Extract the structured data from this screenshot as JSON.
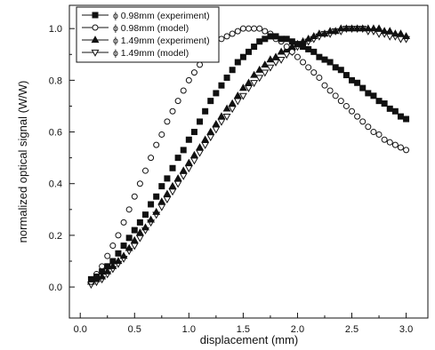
{
  "chart_data": {
    "type": "scatter",
    "xlabel": "displacement (mm)",
    "ylabel": "normalized optical signal (W/W)",
    "xlim": [
      -0.1,
      3.2
    ],
    "ylim": [
      -0.12,
      1.09
    ],
    "xticks": [
      "0.0",
      "0.5",
      "1.0",
      "1.5",
      "2.0",
      "2.5",
      "3.0"
    ],
    "yticks": [
      "0.0",
      "0.2",
      "0.4",
      "0.6",
      "0.8",
      "1.0"
    ],
    "grid": false,
    "legend_position": "top-left",
    "x": [
      0.1,
      0.15,
      0.2,
      0.25,
      0.3,
      0.35,
      0.4,
      0.45,
      0.5,
      0.55,
      0.6,
      0.65,
      0.7,
      0.75,
      0.8,
      0.85,
      0.9,
      0.95,
      1.0,
      1.05,
      1.1,
      1.15,
      1.2,
      1.25,
      1.3,
      1.35,
      1.4,
      1.45,
      1.5,
      1.55,
      1.6,
      1.65,
      1.7,
      1.75,
      1.8,
      1.85,
      1.9,
      1.95,
      2.0,
      2.05,
      2.1,
      2.15,
      2.2,
      2.25,
      2.3,
      2.35,
      2.4,
      2.45,
      2.5,
      2.55,
      2.6,
      2.65,
      2.7,
      2.75,
      2.8,
      2.85,
      2.9,
      2.95,
      3.0
    ],
    "series": [
      {
        "name": "ϕ 0.98mm (experiment)",
        "marker": "filled-square",
        "values": [
          0.03,
          0.04,
          0.06,
          0.08,
          0.1,
          0.13,
          0.16,
          0.19,
          0.22,
          0.25,
          0.28,
          0.32,
          0.35,
          0.39,
          0.42,
          0.46,
          0.5,
          0.53,
          0.57,
          0.6,
          0.64,
          0.68,
          0.72,
          0.75,
          0.78,
          0.81,
          0.84,
          0.87,
          0.89,
          0.91,
          0.93,
          0.95,
          0.96,
          0.97,
          0.97,
          0.96,
          0.96,
          0.95,
          0.94,
          0.93,
          0.92,
          0.91,
          0.89,
          0.88,
          0.87,
          0.85,
          0.84,
          0.82,
          0.8,
          0.79,
          0.77,
          0.75,
          0.74,
          0.72,
          0.71,
          0.69,
          0.68,
          0.66,
          0.65
        ]
      },
      {
        "name": "ϕ 0.98mm (model)",
        "marker": "open-circle",
        "values": [
          0.02,
          0.05,
          0.08,
          0.12,
          0.16,
          0.2,
          0.25,
          0.3,
          0.35,
          0.4,
          0.45,
          0.5,
          0.55,
          0.59,
          0.64,
          0.68,
          0.72,
          0.76,
          0.8,
          0.83,
          0.86,
          0.89,
          0.92,
          0.94,
          0.96,
          0.97,
          0.98,
          0.99,
          1.0,
          1.0,
          1.0,
          1.0,
          0.99,
          0.98,
          0.96,
          0.95,
          0.93,
          0.91,
          0.89,
          0.87,
          0.85,
          0.83,
          0.81,
          0.78,
          0.76,
          0.74,
          0.72,
          0.7,
          0.68,
          0.66,
          0.64,
          0.62,
          0.6,
          0.59,
          0.57,
          0.56,
          0.55,
          0.54,
          0.53
        ]
      },
      {
        "name": "ϕ 1.49mm (experiment)",
        "marker": "filled-triangle-up",
        "values": [
          0.02,
          0.03,
          0.04,
          0.06,
          0.08,
          0.1,
          0.12,
          0.15,
          0.18,
          0.21,
          0.23,
          0.26,
          0.29,
          0.33,
          0.36,
          0.39,
          0.42,
          0.45,
          0.48,
          0.51,
          0.54,
          0.57,
          0.6,
          0.63,
          0.66,
          0.69,
          0.71,
          0.74,
          0.77,
          0.79,
          0.82,
          0.84,
          0.86,
          0.88,
          0.89,
          0.91,
          0.92,
          0.93,
          0.94,
          0.95,
          0.96,
          0.97,
          0.98,
          0.98,
          0.99,
          0.99,
          1.0,
          1.0,
          1.0,
          1.0,
          1.0,
          1.0,
          1.0,
          1.0,
          0.99,
          0.99,
          0.98,
          0.98,
          0.97
        ]
      },
      {
        "name": "ϕ 1.49mm (model)",
        "marker": "open-triangle-down",
        "values": [
          0.01,
          0.02,
          0.03,
          0.05,
          0.07,
          0.09,
          0.11,
          0.14,
          0.16,
          0.19,
          0.22,
          0.25,
          0.28,
          0.31,
          0.34,
          0.37,
          0.4,
          0.43,
          0.46,
          0.49,
          0.52,
          0.55,
          0.58,
          0.61,
          0.64,
          0.66,
          0.69,
          0.72,
          0.74,
          0.77,
          0.79,
          0.81,
          0.83,
          0.85,
          0.87,
          0.88,
          0.9,
          0.91,
          0.93,
          0.94,
          0.95,
          0.96,
          0.97,
          0.98,
          0.98,
          0.99,
          0.99,
          1.0,
          1.0,
          1.0,
          1.0,
          0.99,
          0.99,
          0.98,
          0.98,
          0.97,
          0.97,
          0.96,
          0.96
        ]
      }
    ]
  }
}
